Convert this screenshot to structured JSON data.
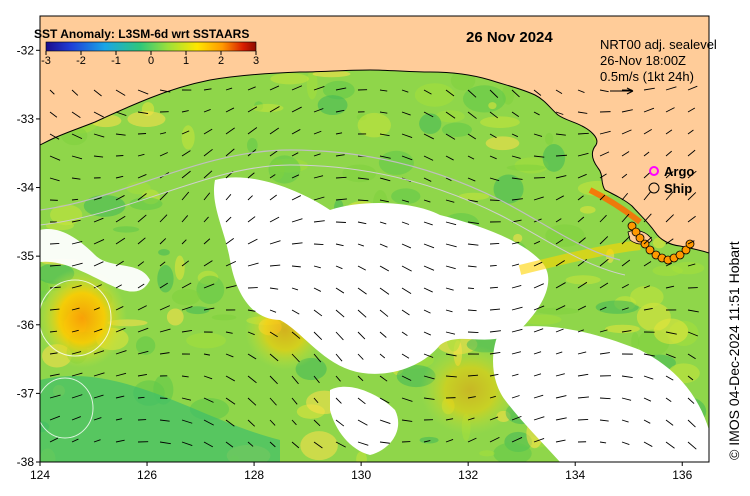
{
  "title": "SST Anomaly: L3SM-6d wrt SSTAARS",
  "date": "26 Nov 2024",
  "colorbar": {
    "ticks": [
      "-3",
      "-2",
      "-1",
      "0",
      "1",
      "2",
      "3"
    ],
    "colors": [
      "#1a0a8c",
      "#1f3fd8",
      "#1aa5e6",
      "#2ec77a",
      "#9be03a",
      "#ffe600",
      "#ff9900",
      "#d81c00",
      "#8c0a00"
    ]
  },
  "current_info": {
    "line1": "NRT00 adj. sealevel",
    "line2": "26-Nov 18:00Z",
    "line3": "0.5m/s (1kt 24h)"
  },
  "legend": {
    "argo": "Argo",
    "ship": "Ship",
    "argo_color": "#ff00ff"
  },
  "credit": "© IMOS 04-Dec-2024 11:51 Hobart",
  "axes": {
    "lon_ticks": [
      "124",
      "126",
      "128",
      "130",
      "132",
      "134",
      "136"
    ],
    "lat_ticks": [
      "-32",
      "-33",
      "-34",
      "-35",
      "-36",
      "-37",
      "-38"
    ],
    "lon_range": [
      124,
      136.5
    ],
    "lat_range": [
      -31.5,
      -38
    ]
  },
  "colors": {
    "land": "#ffcc99",
    "coast": "#000000",
    "frame": "#000000"
  }
}
